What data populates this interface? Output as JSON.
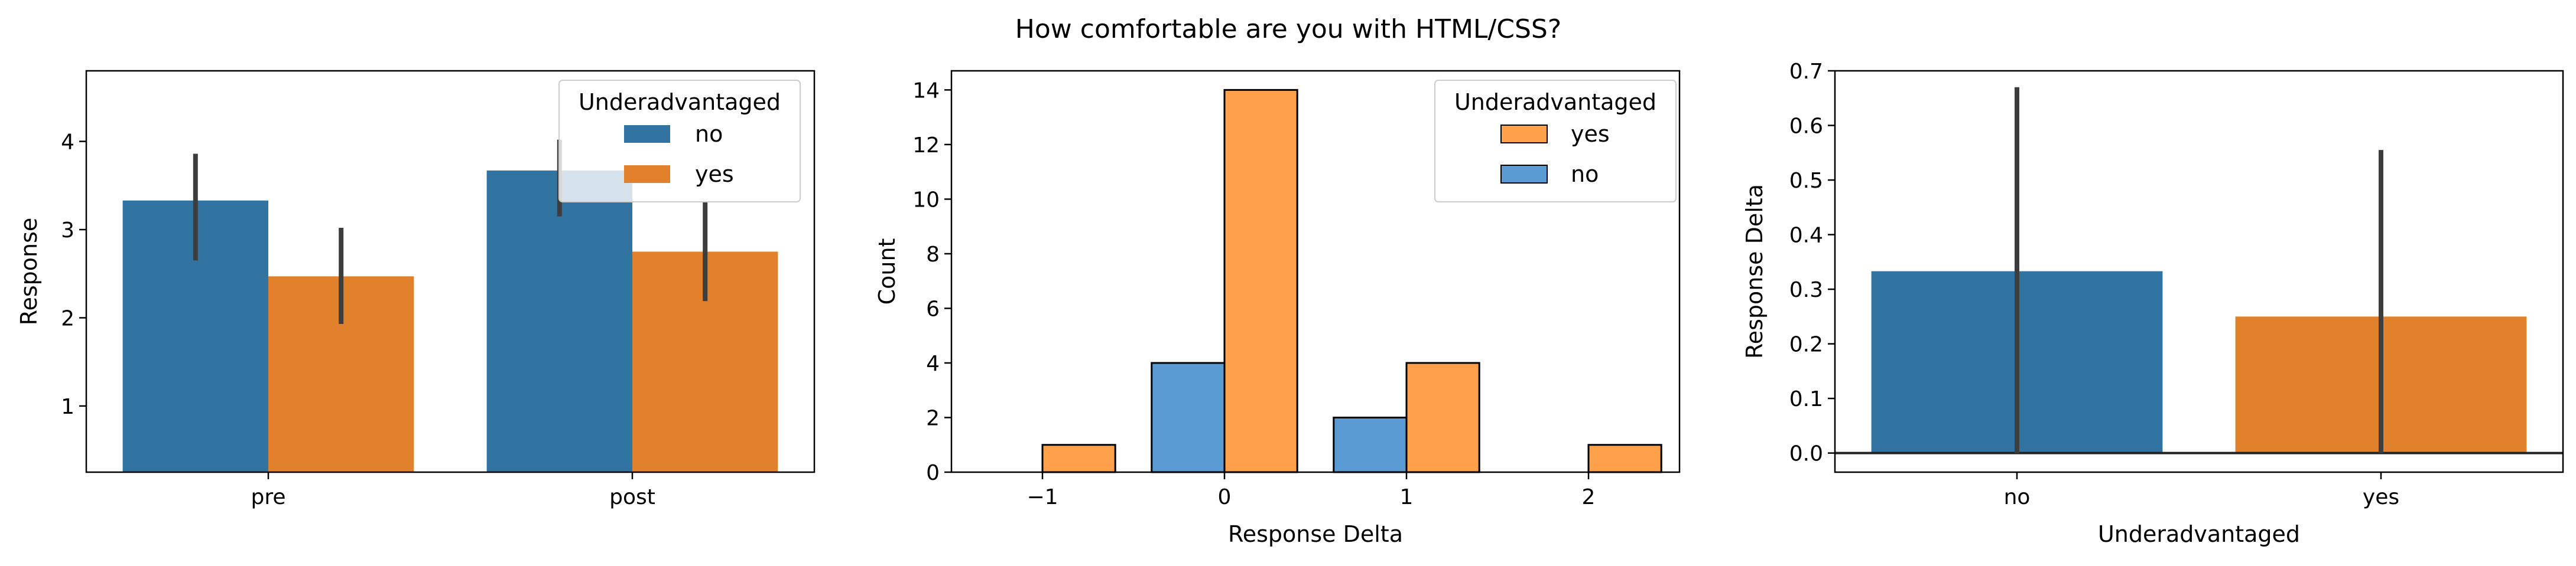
{
  "figure": {
    "suptitle": "How comfortable are you with HTML/CSS?"
  },
  "colors": {
    "no_bar": "#3274a1",
    "yes_bar": "#e1812c",
    "hist_no": "#5a9bd4",
    "hist_yes": "#ffa04a",
    "errorbar": "#3d3d3d"
  },
  "chart_data": [
    {
      "type": "bar",
      "title": "",
      "xlabel": "",
      "ylabel": "Response",
      "categories": [
        "pre",
        "post"
      ],
      "ylim": [
        0.25,
        4.8
      ],
      "yticks": [
        1,
        2,
        3,
        4
      ],
      "grid": false,
      "legend": {
        "title": "Underadvantaged",
        "position": "top-right",
        "entries": [
          "no",
          "yes"
        ]
      },
      "series": [
        {
          "name": "no",
          "values": [
            3.33,
            3.67
          ],
          "ci": [
            [
              2.65,
              3.86
            ],
            [
              3.15,
              4.02
            ]
          ]
        },
        {
          "name": "yes",
          "values": [
            2.47,
            2.75
          ],
          "ci": [
            [
              1.93,
              3.02
            ],
            [
              2.19,
              3.32
            ]
          ]
        }
      ]
    },
    {
      "type": "bar",
      "subtype": "histogram",
      "title": "",
      "xlabel": "Response Delta",
      "ylabel": "Count",
      "x": [
        -1,
        0,
        1,
        2
      ],
      "xticks": [
        "−1",
        "0",
        "1",
        "2"
      ],
      "xlim": [
        -1.5,
        2.5
      ],
      "ylim": [
        0,
        14.7
      ],
      "yticks": [
        0,
        2,
        4,
        6,
        8,
        10,
        12,
        14
      ],
      "grid": false,
      "legend": {
        "title": "Underadvantaged",
        "position": "top-right",
        "entries": [
          "yes",
          "no"
        ]
      },
      "series": [
        {
          "name": "no",
          "values": [
            0,
            4,
            2,
            0
          ]
        },
        {
          "name": "yes",
          "values": [
            1,
            14,
            4,
            1
          ]
        }
      ]
    },
    {
      "type": "bar",
      "title": "",
      "xlabel": "Underadvantaged",
      "ylabel": "Response Delta",
      "categories": [
        "no",
        "yes"
      ],
      "values": [
        0.333,
        0.25
      ],
      "ci": [
        [
          0.0,
          0.67
        ],
        [
          0.0,
          0.555
        ]
      ],
      "ylim": [
        -0.035,
        0.7
      ],
      "yticks": [
        "0.0",
        "0.1",
        "0.2",
        "0.3",
        "0.4",
        "0.5",
        "0.6",
        "0.7"
      ],
      "hline": 0,
      "grid": false
    }
  ]
}
